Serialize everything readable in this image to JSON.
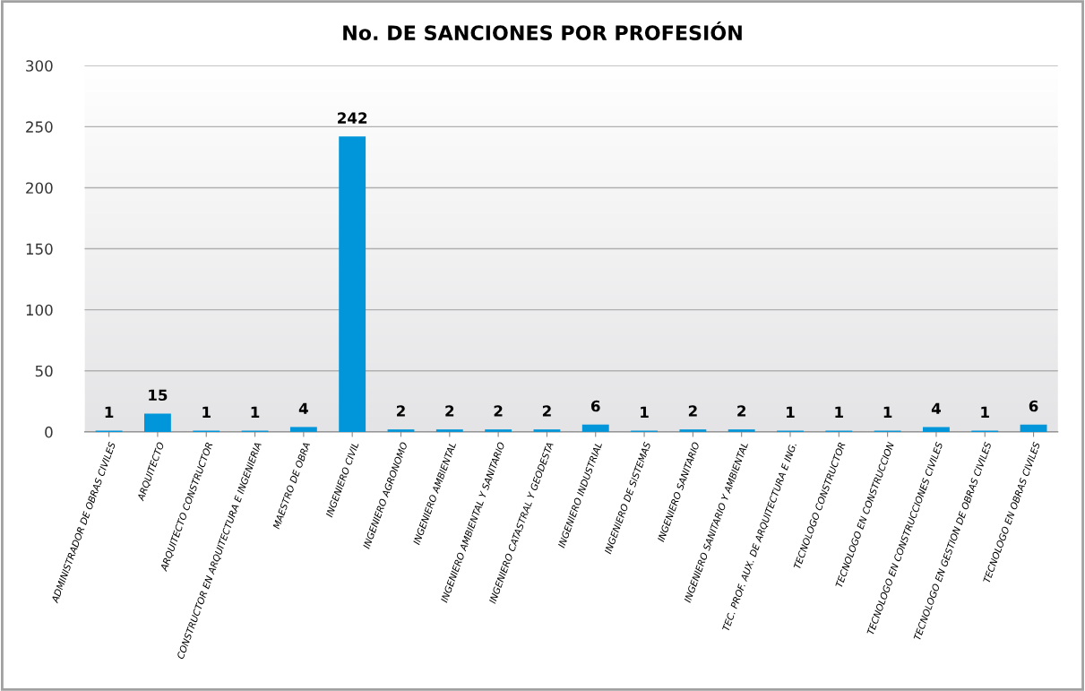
{
  "chart_data": {
    "type": "bar",
    "title": "No. DE SANCIONES POR PROFESIÓN",
    "categories": [
      "ADMINISTRADOR DE OBRAS CIVILES",
      "ARQUITECTO",
      "ARQUITECTO CONSTRUCTOR",
      "CONSTRUCTOR EN ARQUITECTURA E INGENIERIA",
      "MAESTRO DE OBRA",
      "INGENIERO CIVIL",
      "INGENIERO AGRONOMO",
      "INGENIERO AMBIENTAL",
      "INGENIERO AMBIENTAL Y SANITARIO",
      "INGENIERO CATASTRAL Y GEODESTA",
      "INGENIERO INDUSTRIAL",
      "INGENIERO DE SISTEMAS",
      "INGENIERO SANITARIO",
      "INGENIERO SANITARIO Y AMBIENTAL",
      "TEC. PROF. AUX. DE ARQUITECTURA E ING.",
      "TECNOLOGO CONSTRUCTOR",
      "TECNOLOGO EN CONSTRUCCION",
      "TECNOLOGO EN CONSTRUCCIONES CIVILES",
      "TECNOLOGO EN GESTION DE OBRAS CIVILES",
      "TECNOLOGO EN OBRAS CIVILES"
    ],
    "values": [
      1,
      15,
      1,
      1,
      4,
      242,
      2,
      2,
      2,
      2,
      6,
      1,
      2,
      2,
      1,
      1,
      1,
      4,
      1,
      6
    ],
    "color": "#0096d9",
    "ylim": [
      0,
      300
    ],
    "yticks": [
      0,
      50,
      100,
      150,
      200,
      250,
      300
    ],
    "grid": "y",
    "data_labels": true
  }
}
